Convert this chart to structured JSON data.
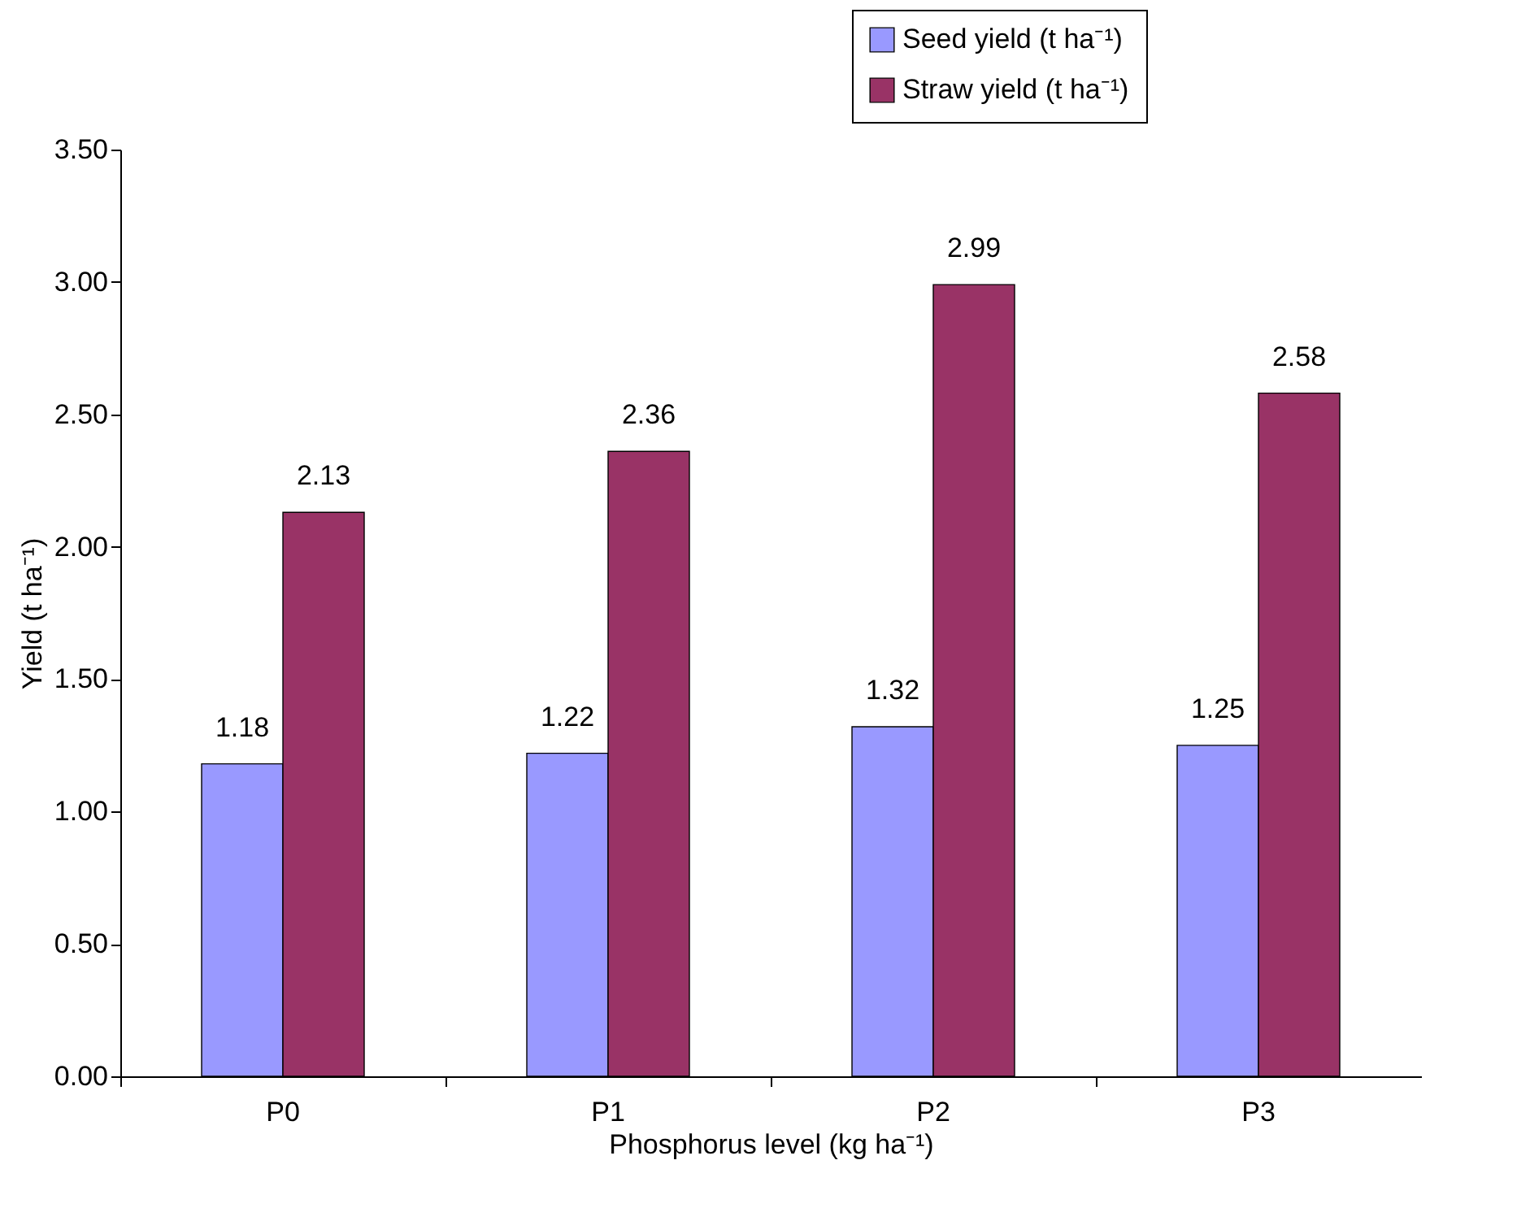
{
  "chart_data": {
    "type": "bar",
    "xlabel": "Phosphorus level (kg ha⁻¹)",
    "ylabel": "Yield (t ha⁻¹)",
    "categories": [
      "P0",
      "P1",
      "P2",
      "P3"
    ],
    "series": [
      {
        "name": "Seed yield (t ha⁻¹)",
        "color": "#9999ff",
        "values": [
          1.18,
          1.22,
          1.32,
          1.25
        ]
      },
      {
        "name": "Straw yield (t ha⁻¹)",
        "color": "#993366",
        "values": [
          2.13,
          2.36,
          2.99,
          2.58
        ]
      }
    ],
    "ylim": [
      0,
      3.5
    ],
    "yticks": [
      {
        "value": 0,
        "label": "0.00"
      },
      {
        "value": 0.5,
        "label": "0.50"
      },
      {
        "value": 1,
        "label": "1.00"
      },
      {
        "value": 1.5,
        "label": "1.50"
      },
      {
        "value": 2,
        "label": "2.00"
      },
      {
        "value": 2.5,
        "label": "2.50"
      },
      {
        "value": 3,
        "label": "3.00"
      },
      {
        "value": 3.5,
        "label": "3.50"
      }
    ],
    "grid": false,
    "legend": "top right",
    "data_labels": true
  }
}
